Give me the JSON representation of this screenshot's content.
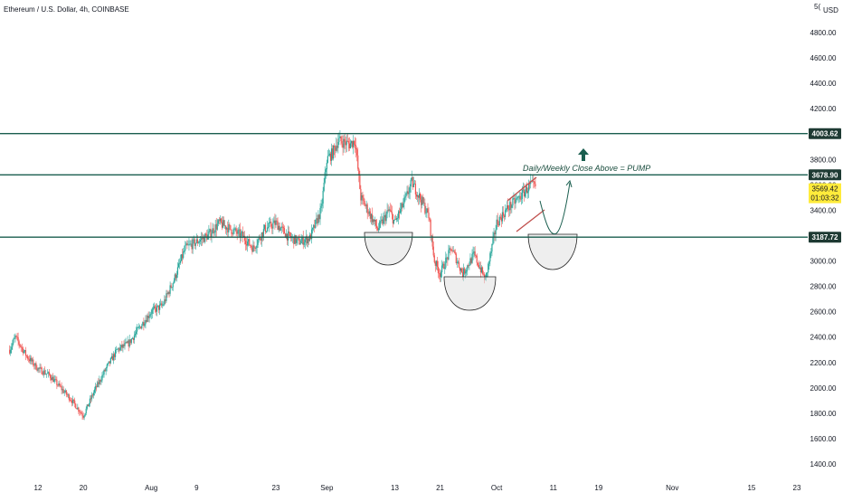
{
  "header": {
    "title": "Ethereum / U.S. Dollar, 4h, COINBASE",
    "currency": "USD",
    "currency_prefix": "5("
  },
  "chart_data": {
    "type": "candlestick",
    "title": "Ethereum / U.S. Dollar, 4h, COINBASE",
    "y_axis": {
      "ticks": [
        1400,
        1600,
        1800,
        2000,
        2200,
        2400,
        2600,
        2800,
        3000,
        3200,
        3400,
        3600,
        3800,
        4000,
        4200,
        4400,
        4600,
        4800
      ],
      "tick_labels": [
        "1400.00",
        "1600.00",
        "1800.00",
        "2000.00",
        "2200.00",
        "2400.00",
        "2600.00",
        "2800.00",
        "3000.00",
        "3200.00",
        "3400.00",
        "3600.00",
        "3800.00",
        "4000.00",
        "4200.00",
        "4400.00",
        "4600.00",
        "4800.00"
      ],
      "range": [
        1340,
        5000
      ],
      "position": "right",
      "unit": "USD"
    },
    "x_axis": {
      "range": [
        "2021-07-07",
        "2021-11-25"
      ],
      "ticks": [
        {
          "date": "2021-07-12",
          "label": "12"
        },
        {
          "date": "2021-07-20",
          "label": "20"
        },
        {
          "date": "2021-08-01",
          "label": "Aug"
        },
        {
          "date": "2021-08-09",
          "label": "9"
        },
        {
          "date": "2021-08-23",
          "label": "23"
        },
        {
          "date": "2021-09-01",
          "label": "Sep"
        },
        {
          "date": "2021-09-13",
          "label": "13"
        },
        {
          "date": "2021-09-21",
          "label": "21"
        },
        {
          "date": "2021-10-01",
          "label": "Oct"
        },
        {
          "date": "2021-10-11",
          "label": "11"
        },
        {
          "date": "2021-10-19",
          "label": "19"
        },
        {
          "date": "2021-11-01",
          "label": "Nov"
        },
        {
          "date": "2021-11-15",
          "label": "15"
        },
        {
          "date": "2021-11-23",
          "label": "23"
        }
      ]
    },
    "price_path": [
      {
        "date": "2021-07-07",
        "price": 2300
      },
      {
        "date": "2021-07-08",
        "price": 2400
      },
      {
        "date": "2021-07-10",
        "price": 2250
      },
      {
        "date": "2021-07-12",
        "price": 2150
      },
      {
        "date": "2021-07-14",
        "price": 2100
      },
      {
        "date": "2021-07-16",
        "price": 2000
      },
      {
        "date": "2021-07-18",
        "price": 1900
      },
      {
        "date": "2021-07-20",
        "price": 1780
      },
      {
        "date": "2021-07-22",
        "price": 1980
      },
      {
        "date": "2021-07-24",
        "price": 2150
      },
      {
        "date": "2021-07-26",
        "price": 2300
      },
      {
        "date": "2021-07-28",
        "price": 2350
      },
      {
        "date": "2021-07-30",
        "price": 2480
      },
      {
        "date": "2021-08-01",
        "price": 2600
      },
      {
        "date": "2021-08-03",
        "price": 2650
      },
      {
        "date": "2021-08-05",
        "price": 2850
      },
      {
        "date": "2021-08-07",
        "price": 3100
      },
      {
        "date": "2021-08-09",
        "price": 3150
      },
      {
        "date": "2021-08-11",
        "price": 3200
      },
      {
        "date": "2021-08-13",
        "price": 3300
      },
      {
        "date": "2021-08-15",
        "price": 3250
      },
      {
        "date": "2021-08-17",
        "price": 3200
      },
      {
        "date": "2021-08-19",
        "price": 3100
      },
      {
        "date": "2021-08-21",
        "price": 3250
      },
      {
        "date": "2021-08-23",
        "price": 3300
      },
      {
        "date": "2021-08-25",
        "price": 3200
      },
      {
        "date": "2021-08-27",
        "price": 3150
      },
      {
        "date": "2021-08-29",
        "price": 3180
      },
      {
        "date": "2021-08-31",
        "price": 3400
      },
      {
        "date": "2021-09-01",
        "price": 3800
      },
      {
        "date": "2021-09-02",
        "price": 3850
      },
      {
        "date": "2021-09-03",
        "price": 3950
      },
      {
        "date": "2021-09-05",
        "price": 3920
      },
      {
        "date": "2021-09-06",
        "price": 3950
      },
      {
        "date": "2021-09-07",
        "price": 3500
      },
      {
        "date": "2021-09-08",
        "price": 3420
      },
      {
        "date": "2021-09-10",
        "price": 3250
      },
      {
        "date": "2021-09-12",
        "price": 3400
      },
      {
        "date": "2021-09-13",
        "price": 3300
      },
      {
        "date": "2021-09-15",
        "price": 3500
      },
      {
        "date": "2021-09-16",
        "price": 3620
      },
      {
        "date": "2021-09-18",
        "price": 3450
      },
      {
        "date": "2021-09-19",
        "price": 3350
      },
      {
        "date": "2021-09-20",
        "price": 3000
      },
      {
        "date": "2021-09-21",
        "price": 2900
      },
      {
        "date": "2021-09-23",
        "price": 3100
      },
      {
        "date": "2021-09-25",
        "price": 2900
      },
      {
        "date": "2021-09-27",
        "price": 3050
      },
      {
        "date": "2021-09-29",
        "price": 2850
      },
      {
        "date": "2021-10-01",
        "price": 3300
      },
      {
        "date": "2021-10-03",
        "price": 3420
      },
      {
        "date": "2021-10-05",
        "price": 3500
      },
      {
        "date": "2021-10-07",
        "price": 3600
      },
      {
        "date": "2021-10-08",
        "price": 3570
      }
    ],
    "horizontal_levels": [
      {
        "value": 4003.62,
        "label": "4003.62",
        "color": "#1a5e4f"
      },
      {
        "value": 3678.9,
        "label": "3678.90",
        "color": "#1a5e4f"
      },
      {
        "value": 3187.72,
        "label": "3187.72",
        "color": "#1a5e4f"
      }
    ],
    "last_price": {
      "value": 3569.42,
      "label": "3569.42",
      "countdown": "01:03:32",
      "color": "#ffeb3b"
    },
    "annotations": [
      {
        "type": "text",
        "text": "Daily/Weekly Close Above = PUMP",
        "color": "#1a4d3e"
      },
      {
        "type": "arrow-up",
        "color": "#1a5e4f"
      }
    ],
    "bullish_color": "#26a69a",
    "bearish_color": "#ef5350",
    "grid": false,
    "legend": "none"
  }
}
